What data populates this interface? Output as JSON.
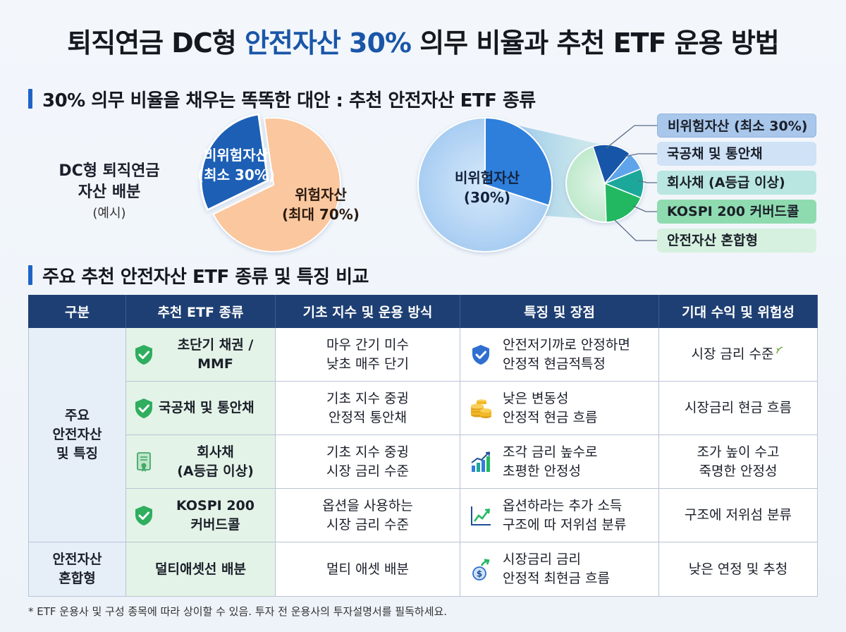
{
  "title": {
    "part1": "퇴직연금 DC형 ",
    "accent": "안전자산 30%",
    "part2": " 의무 비율과 추천 ETF 운용 방법"
  },
  "section1": {
    "heading": "30% 의무 비율을 채우는 똑똑한 대안 : 추천 안전자산 ETF 종류"
  },
  "allocation": {
    "label_line1": "DC형 퇴직연금",
    "label_line2": "자산 배분",
    "label_sub": "(예시)",
    "safe_line1": "비위험자산",
    "safe_line2": "(최소 30%)",
    "risk_line1": "위험자산",
    "risk_line2": "(최대 70%)",
    "safe_share": 30,
    "risk_share": 70,
    "colors": {
      "safe": "#1b5fb5",
      "risk": "#fbc79f"
    }
  },
  "safe_breakdown": {
    "center_line1": "비위험자산",
    "center_line2": "(30%)",
    "legend": [
      "비위험자산 (최소 30%)",
      "국공채 및 통안채",
      "회사채 (A등급 이상)",
      "KOSPI 200 커버드콜",
      "안전자산 혼합형"
    ]
  },
  "section2": {
    "heading": "주요 추천 안전자산 ETF 종류 및 특징 비교"
  },
  "table": {
    "headers": [
      "구분",
      "추천 ETF 종류",
      "기초 지수 및 운용 방식",
      "특징 및 장점",
      "기대 수익 및 위험성"
    ],
    "group1": {
      "line1": "주요",
      "line2": "안전자산",
      "line3": "및 특징"
    },
    "group2": {
      "line1": "안전자산",
      "line2": "혼합형"
    },
    "rows": [
      {
        "etf_line1": "초단기 채권 /",
        "etf_line2": "MMF",
        "index_line1": "마우 간기 미수",
        "index_line2": "낮초 매주 단기",
        "feature_line1": "안전저기까로 안정하면",
        "feature_line2": "안정적 현금적특정",
        "expected": "시장 금리 수준",
        "icon": "shield-check-icon",
        "feature_icon": "shield-check-icon"
      },
      {
        "etf_line1": "국공채 및 통안채",
        "etf_line2": "",
        "index_line1": "기초 지수 중귕",
        "index_line2": "안정적 통안채",
        "feature_line1": "낮은 변동성",
        "feature_line2": "안정적 현금 흐름",
        "expected": "시장금리 현금 흐름",
        "icon": "shield-check-icon",
        "feature_icon": "coin-stack-icon"
      },
      {
        "etf_line1": "회사채",
        "etf_line2": "(A등급 이상)",
        "index_line1": "기초 지수 중귕",
        "index_line2": "시장 금리 수준",
        "feature_line1": "조각 금리 높수로",
        "feature_line2": "초평한 안정성",
        "expected_line1": "조가 높이 수고",
        "expected_line2": "죽명한 안정성",
        "icon": "certificate-icon",
        "feature_icon": "growth-chart-icon"
      },
      {
        "etf_line1": "KOSPI 200",
        "etf_line2": "커버드콜",
        "index_line1": "옵션을 사용하는",
        "index_line2": "시장 금리 수준",
        "feature_line1": "옵션하라는 추가 소득",
        "feature_line2": "구조에 따 저위섬 분류",
        "expected": "구조에 저위섬 분류",
        "icon": "shield-check-icon",
        "feature_icon": "trend-line-icon"
      },
      {
        "etf_line1": "덜티애셋선 배분",
        "etf_line2": "",
        "index_line1": "멀티 애셋 배분",
        "index_line2": "",
        "feature_line1": "시장금리 금리",
        "feature_line2": "안정적 최현금 흐름",
        "expected": "낮은 연정 및 추청",
        "icon": "",
        "feature_icon": "dollar-growth-icon"
      }
    ]
  },
  "footnote": "* ETF 운용사 및 구성 종목에 따라 상이할 수 있음. 투자 전 운용사의 투자설명서를 필독하세요."
}
